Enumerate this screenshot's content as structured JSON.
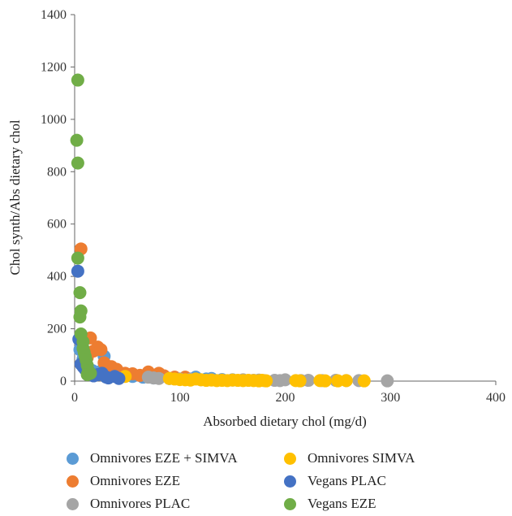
{
  "chart_data": {
    "type": "scatter",
    "title": "",
    "xlabel": "Absorbed dietary chol (mg/d)",
    "ylabel": "Chol synth/Abs dietary chol",
    "xlim": [
      0,
      400
    ],
    "ylim": [
      0,
      1400
    ],
    "xticks": [
      "0",
      "100",
      "200",
      "300",
      "400"
    ],
    "yticks": [
      "0",
      "200",
      "400",
      "600",
      "800",
      "1000",
      "1200",
      "1400"
    ],
    "grid": false,
    "legend_position": "bottom",
    "series": [
      {
        "name": "Omnivores EZE + SIMVA",
        "color": "#5b9bd5",
        "points": [
          [
            5,
            120
          ],
          [
            8,
            85
          ],
          [
            10,
            60
          ],
          [
            13,
            48
          ],
          [
            17,
            40
          ],
          [
            22,
            32
          ],
          [
            25,
            38
          ],
          [
            28,
            95
          ],
          [
            32,
            30
          ],
          [
            38,
            25
          ],
          [
            45,
            22
          ],
          [
            55,
            18
          ],
          [
            65,
            15
          ],
          [
            75,
            12
          ],
          [
            90,
            10
          ],
          [
            100,
            8
          ],
          [
            110,
            8
          ],
          [
            115,
            15
          ],
          [
            125,
            8
          ],
          [
            130,
            10
          ],
          [
            140,
            6
          ],
          [
            150,
            5
          ]
        ]
      },
      {
        "name": "Omnivores EZE",
        "color": "#ed7d31",
        "points": [
          [
            6,
            505
          ],
          [
            10,
            110
          ],
          [
            12,
            90
          ],
          [
            15,
            165
          ],
          [
            18,
            115
          ],
          [
            22,
            130
          ],
          [
            25,
            120
          ],
          [
            28,
            70
          ],
          [
            30,
            60
          ],
          [
            35,
            55
          ],
          [
            40,
            45
          ],
          [
            48,
            30
          ],
          [
            55,
            28
          ],
          [
            62,
            22
          ],
          [
            70,
            35
          ],
          [
            80,
            30
          ],
          [
            85,
            20
          ],
          [
            95,
            15
          ],
          [
            105,
            15
          ]
        ]
      },
      {
        "name": "Omnivores PLAC",
        "color": "#a5a5a5",
        "points": [
          [
            70,
            15
          ],
          [
            75,
            12
          ],
          [
            80,
            10
          ],
          [
            90,
            10
          ],
          [
            100,
            8
          ],
          [
            110,
            7
          ],
          [
            120,
            5
          ],
          [
            130,
            5
          ],
          [
            140,
            4
          ],
          [
            150,
            4
          ],
          [
            160,
            5
          ],
          [
            170,
            3
          ],
          [
            175,
            4
          ],
          [
            180,
            2
          ],
          [
            190,
            3
          ],
          [
            195,
            2
          ],
          [
            200,
            5
          ],
          [
            215,
            2
          ],
          [
            222,
            3
          ],
          [
            235,
            2
          ],
          [
            248,
            3
          ],
          [
            258,
            2
          ],
          [
            270,
            2
          ],
          [
            297,
            1
          ]
        ]
      },
      {
        "name": "Omnivores SIMVA",
        "color": "#ffc000",
        "points": [
          [
            48,
            18
          ],
          [
            90,
            10
          ],
          [
            95,
            8
          ],
          [
            100,
            6
          ],
          [
            105,
            5
          ],
          [
            110,
            4
          ],
          [
            115,
            8
          ],
          [
            120,
            5
          ],
          [
            125,
            3
          ],
          [
            130,
            4
          ],
          [
            135,
            2
          ],
          [
            140,
            3
          ],
          [
            145,
            2
          ],
          [
            150,
            4
          ],
          [
            155,
            3
          ],
          [
            160,
            2
          ],
          [
            165,
            3
          ],
          [
            170,
            2
          ],
          [
            175,
            1
          ],
          [
            178,
            3
          ],
          [
            182,
            1
          ],
          [
            210,
            2
          ],
          [
            214,
            1
          ],
          [
            233,
            2
          ],
          [
            238,
            1
          ],
          [
            250,
            1
          ],
          [
            258,
            2
          ],
          [
            275,
            1
          ]
        ]
      },
      {
        "name": "Vegans PLAC",
        "color": "#4472c4",
        "points": [
          [
            3,
            420
          ],
          [
            4,
            160
          ],
          [
            6,
            65
          ],
          [
            8,
            55
          ],
          [
            10,
            45
          ],
          [
            12,
            35
          ],
          [
            15,
            28
          ],
          [
            18,
            20
          ],
          [
            22,
            25
          ],
          [
            26,
            30
          ],
          [
            30,
            15
          ],
          [
            32,
            12
          ],
          [
            38,
            18
          ],
          [
            42,
            10
          ]
        ]
      },
      {
        "name": "Vegans EZE",
        "color": "#70ad47",
        "points": [
          [
            3,
            1150
          ],
          [
            2,
            920
          ],
          [
            3,
            833
          ],
          [
            3,
            470
          ],
          [
            5,
            338
          ],
          [
            6,
            268
          ],
          [
            5,
            245
          ],
          [
            6,
            180
          ],
          [
            8,
            150
          ],
          [
            8,
            125
          ],
          [
            9,
            110
          ],
          [
            10,
            95
          ],
          [
            11,
            80
          ],
          [
            12,
            60
          ],
          [
            13,
            40
          ],
          [
            12,
            25
          ],
          [
            15,
            30
          ]
        ]
      }
    ]
  }
}
